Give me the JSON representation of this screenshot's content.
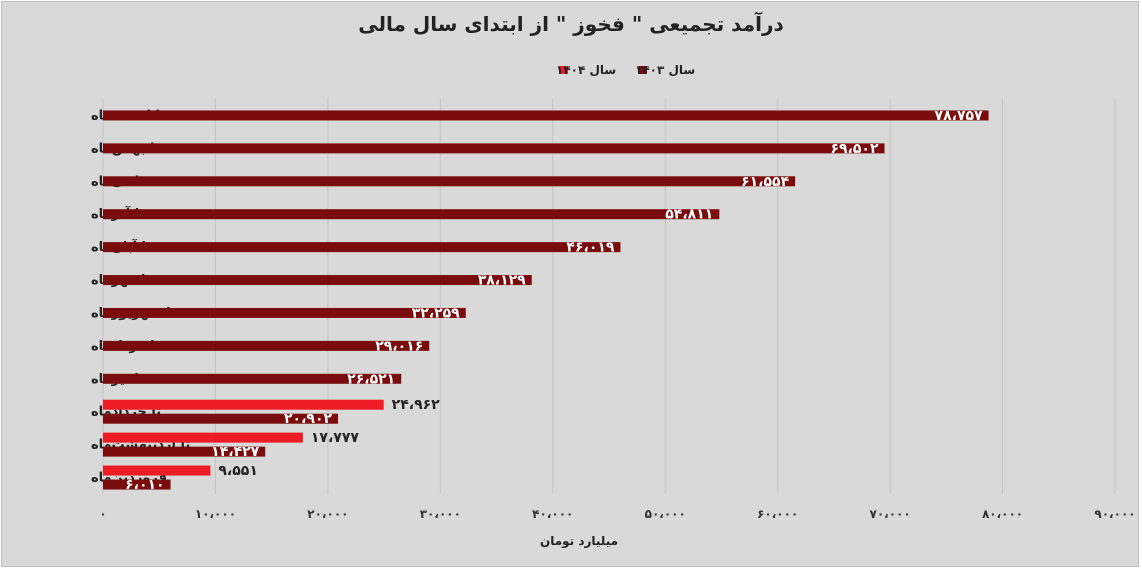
{
  "chart_data": {
    "type": "bar",
    "orientation": "horizontal",
    "title": "درآمد تجمیعی \" فخوز \" از ابتدای سال مالی",
    "xlabel": "میلیارد تومان",
    "xlim": [
      0,
      90000
    ],
    "x_ticks": [
      0,
      10000,
      20000,
      30000,
      40000,
      50000,
      60000,
      70000,
      80000,
      90000
    ],
    "x_tick_labels": [
      "۰",
      "۱۰،۰۰۰",
      "۲۰،۰۰۰",
      "۳۰،۰۰۰",
      "۴۰،۰۰۰",
      "۵۰،۰۰۰",
      "۶۰،۰۰۰",
      "۷۰،۰۰۰",
      "۸۰،۰۰۰",
      "۹۰،۰۰۰"
    ],
    "grid": true,
    "legend_position": "top-center",
    "categories": [
      "تا اسفندماه",
      "تا بهمن‌ماه",
      "تا دی‌ماه",
      "تا آذرماه",
      "تا آبان‌ماه",
      "تا مهرماه",
      "تا شهریورماه",
      "تا مردادماه",
      "تا تیرماه",
      "تا خردادماه",
      "تا اردیبهشت‌ماه",
      "فروردین‌ماه"
    ],
    "series": [
      {
        "name": "سال ۱۴۰۳",
        "color": "#7b0c0e",
        "values": [
          78757,
          69502,
          61554,
          54811,
          46019,
          38129,
          32259,
          29016,
          26521,
          20902,
          14427,
          6010
        ],
        "labels": [
          "۷۸،۷۵۷",
          "۶۹،۵۰۲",
          "۶۱،۵۵۴",
          "۵۴،۸۱۱",
          "۴۶،۰۱۹",
          "۳۸،۱۲۹",
          "۳۲،۲۵۹",
          "۲۹،۰۱۶",
          "۲۶،۵۲۱",
          "۲۰،۹۰۲",
          "۱۴،۴۲۷",
          "۶،۰۱۰"
        ]
      },
      {
        "name": "سال ۱۴۰۴",
        "color": "#ee1c25",
        "values": [
          null,
          null,
          null,
          null,
          null,
          null,
          null,
          null,
          null,
          24962,
          17777,
          9551
        ],
        "labels": [
          null,
          null,
          null,
          null,
          null,
          null,
          null,
          null,
          null,
          "۲۴،۹۶۲",
          "۱۷،۷۷۷",
          "۹،۵۵۱"
        ]
      }
    ]
  }
}
